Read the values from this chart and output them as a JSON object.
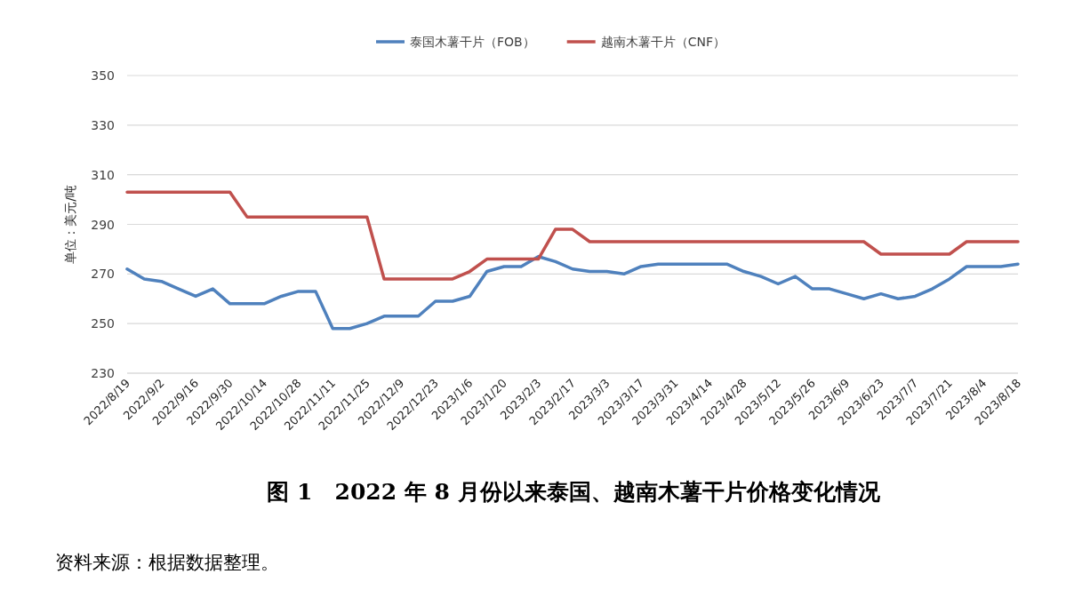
{
  "chart_data": {
    "type": "line",
    "title": "图 1　2022 年 8 月份以来泰国、越南木薯干片价格变化情况",
    "ylabel": "单位：美元/吨",
    "annotations": [
      "资料来源：根据数据整理。"
    ],
    "categories": [
      "2022/8/19",
      null,
      "2022/9/2",
      null,
      "2022/9/16",
      null,
      "2022/9/30",
      null,
      "2022/10/14",
      null,
      "2022/10/28",
      null,
      "2022/11/11",
      null,
      "2022/11/25",
      null,
      "2022/12/9",
      null,
      "2022/12/23",
      null,
      "2023/1/6",
      null,
      "2023/1/20",
      null,
      "2023/2/3",
      null,
      "2023/2/17",
      null,
      "2023/3/3",
      null,
      "2023/3/17",
      null,
      "2023/3/31",
      null,
      "2023/4/14",
      null,
      "2023/4/28",
      null,
      "2023/5/12",
      null,
      "2023/5/26",
      null,
      "2023/6/9",
      null,
      "2023/6/23",
      null,
      "2023/7/7",
      null,
      "2023/7/21",
      null,
      "2023/8/4",
      null,
      "2023/8/18"
    ],
    "series": [
      {
        "name": "泰国木薯干片（FOB）",
        "color": "#4f81bd",
        "values": [
          272,
          268,
          267,
          264,
          261,
          264,
          258,
          258,
          258,
          261,
          263,
          263,
          248,
          248,
          250,
          253,
          253,
          253,
          259,
          259,
          261,
          271,
          273,
          273,
          277,
          275,
          272,
          271,
          271,
          270,
          273,
          274,
          274,
          274,
          274,
          274,
          271,
          269,
          266,
          269,
          264,
          264,
          262,
          260,
          262,
          260,
          261,
          264,
          268,
          273,
          273,
          273,
          274
        ]
      },
      {
        "name": "越南木薯干片（CNF）",
        "color": "#c0504d",
        "values": [
          303,
          303,
          303,
          303,
          303,
          303,
          303,
          293,
          293,
          293,
          293,
          293,
          293,
          293,
          293,
          268,
          268,
          268,
          268,
          268,
          271,
          276,
          276,
          276,
          276,
          288,
          288,
          283,
          283,
          283,
          283,
          283,
          283,
          283,
          283,
          283,
          283,
          283,
          283,
          283,
          283,
          283,
          283,
          283,
          278,
          278,
          278,
          278,
          278,
          283,
          283,
          283,
          283
        ]
      }
    ],
    "ylim": [
      230,
      350
    ],
    "yticks": [
      230,
      250,
      270,
      290,
      310,
      330,
      350
    ],
    "grid": "y",
    "legend": "top",
    "marker": "none",
    "line_style": "solid"
  }
}
